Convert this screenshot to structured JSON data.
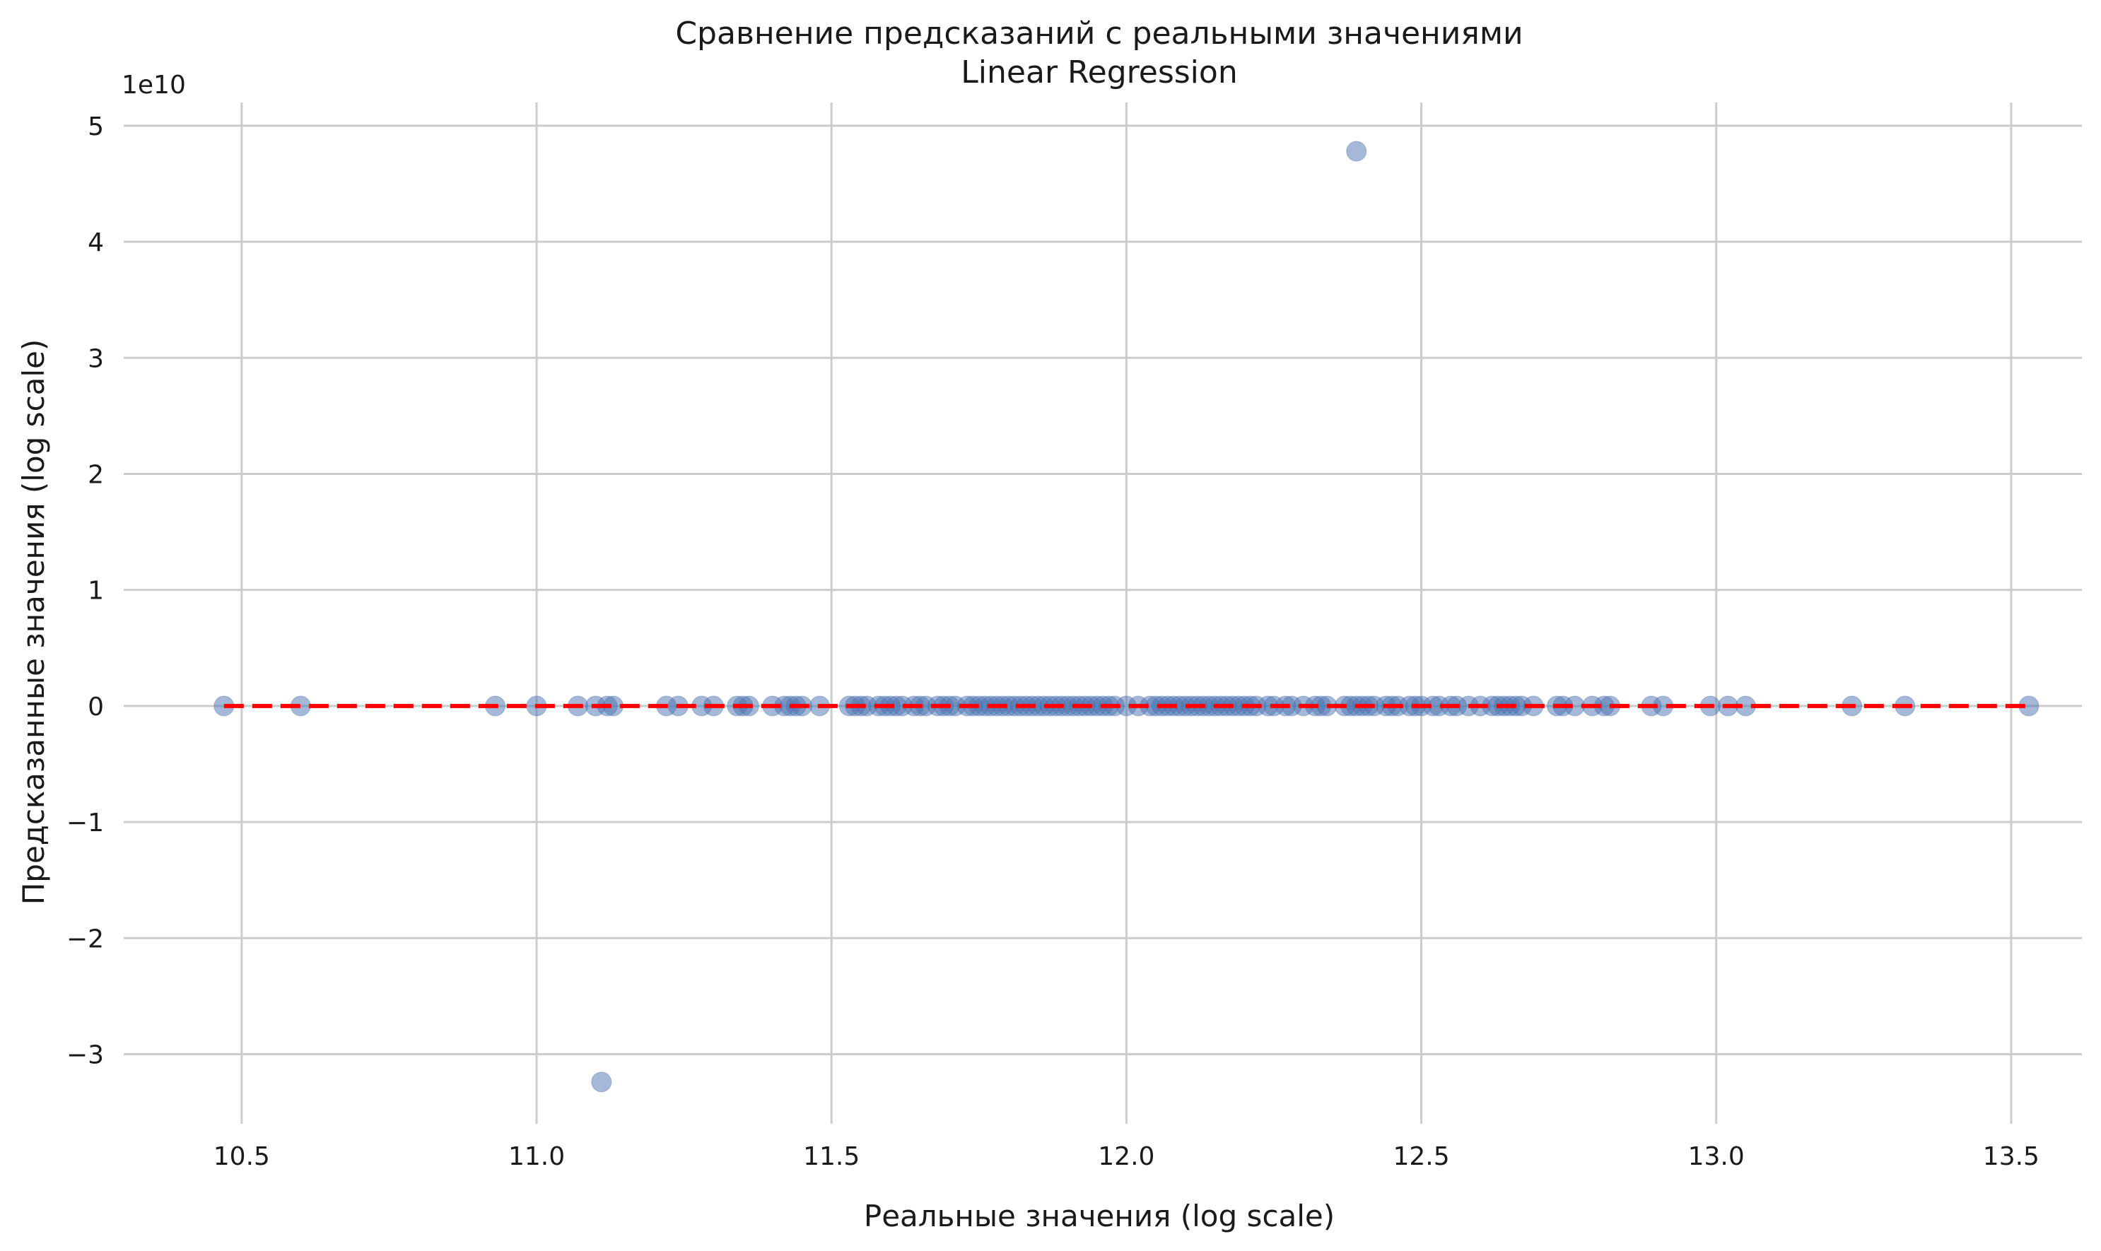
{
  "chart_data": {
    "type": "scatter",
    "title": "Сравнение предсказаний с реальными значениями",
    "subtitle": "Linear Regression",
    "xlabel": "Реальные значения (log scale)",
    "ylabel": "Предсказанные значения (log scale)",
    "y_offset_label": "1e10",
    "xlim": [
      10.3,
      13.62
    ],
    "ylim": [
      -3.6,
      5.2
    ],
    "x_ticks": [
      10.5,
      11.0,
      11.5,
      12.0,
      12.5,
      13.0,
      13.5
    ],
    "x_tick_labels": [
      "10.5",
      "11.0",
      "11.5",
      "12.0",
      "12.5",
      "13.0",
      "13.5"
    ],
    "y_ticks": [
      -3,
      -2,
      -1,
      0,
      1,
      2,
      3,
      4,
      5
    ],
    "y_tick_labels": [
      "−3",
      "−2",
      "−1",
      "0",
      "1",
      "2",
      "3",
      "4",
      "5"
    ],
    "grid": true,
    "point_color": "#4c72b0",
    "reference_line": {
      "x": [
        10.47,
        13.53
      ],
      "y": [
        0,
        0
      ],
      "color": "#ff0000",
      "style": "dashed"
    },
    "outliers": [
      {
        "x": 12.39,
        "y": 4.78
      },
      {
        "x": 11.11,
        "y": -3.24
      }
    ],
    "points_x": [
      10.47,
      10.6,
      10.93,
      11.0,
      11.07,
      11.1,
      11.12,
      11.13,
      11.22,
      11.24,
      11.28,
      11.3,
      11.34,
      11.35,
      11.36,
      11.4,
      11.42,
      11.43,
      11.44,
      11.45,
      11.48,
      11.53,
      11.54,
      11.55,
      11.56,
      11.58,
      11.59,
      11.6,
      11.61,
      11.62,
      11.64,
      11.65,
      11.66,
      11.68,
      11.69,
      11.7,
      11.71,
      11.73,
      11.74,
      11.75,
      11.76,
      11.77,
      11.78,
      11.79,
      11.8,
      11.81,
      11.82,
      11.83,
      11.84,
      11.85,
      11.86,
      11.87,
      11.88,
      11.89,
      11.9,
      11.91,
      11.92,
      11.93,
      11.94,
      11.95,
      11.96,
      11.97,
      11.98,
      12.0,
      12.02,
      12.04,
      12.05,
      12.06,
      12.07,
      12.08,
      12.09,
      12.1,
      12.11,
      12.12,
      12.13,
      12.14,
      12.15,
      12.16,
      12.17,
      12.18,
      12.19,
      12.2,
      12.21,
      12.22,
      12.24,
      12.25,
      12.27,
      12.28,
      12.3,
      12.32,
      12.33,
      12.34,
      12.37,
      12.38,
      12.39,
      12.4,
      12.41,
      12.42,
      12.44,
      12.45,
      12.46,
      12.48,
      12.49,
      12.5,
      12.52,
      12.53,
      12.55,
      12.56,
      12.58,
      12.6,
      12.62,
      12.63,
      12.64,
      12.65,
      12.66,
      12.67,
      12.69,
      12.73,
      12.74,
      12.76,
      12.79,
      12.81,
      12.82,
      12.89,
      12.91,
      12.99,
      13.02,
      13.05,
      13.23,
      13.32,
      13.53
    ],
    "points_y_all": 0
  }
}
